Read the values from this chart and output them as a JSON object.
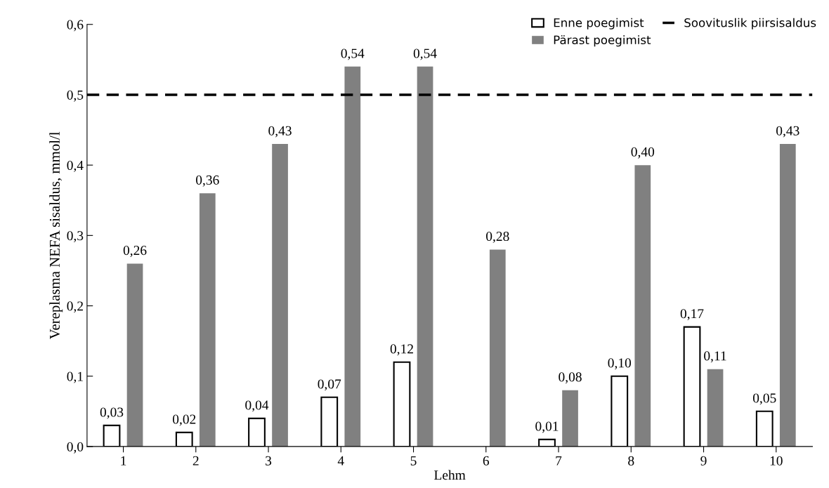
{
  "chart_data": {
    "type": "bar",
    "xlabel": "Lehm",
    "ylabel": "Vereplasma NEFA sisaldus, mmol/l",
    "categories": [
      "1",
      "2",
      "3",
      "4",
      "5",
      "6",
      "7",
      "8",
      "9",
      "10"
    ],
    "series": [
      {
        "name": "Enne poegimist",
        "color": "#ffffff",
        "values": [
          0.03,
          0.02,
          0.04,
          0.07,
          0.12,
          null,
          0.01,
          0.1,
          0.17,
          0.05
        ],
        "value_labels": [
          "0,03",
          "0,02",
          "0,04",
          "0,07",
          "0,12",
          null,
          "0,01",
          "0,10",
          "0,17",
          "0,05"
        ]
      },
      {
        "name": "Pärast poegimist",
        "color": "#808080",
        "values": [
          0.26,
          0.36,
          0.43,
          0.54,
          0.54,
          0.28,
          0.08,
          0.4,
          0.11,
          0.43
        ],
        "value_labels": [
          "0,26",
          "0,36",
          "0,43",
          "0,54",
          "0,54",
          "0,28",
          "0,08",
          "0,40",
          "0,11",
          "0,43"
        ]
      }
    ],
    "ylim": [
      0,
      0.6
    ],
    "yticks": [
      {
        "value": 0,
        "label": "0,0"
      },
      {
        "value": 0.1,
        "label": "0,1"
      },
      {
        "value": 0.2,
        "label": "0,2"
      },
      {
        "value": 0.3,
        "label": "0,3"
      },
      {
        "value": 0.4,
        "label": "0,4"
      },
      {
        "value": 0.5,
        "label": "0,5"
      },
      {
        "value": 0.6,
        "label": "0,6"
      }
    ],
    "ref_lines": [
      {
        "axis": "y",
        "value": 0.5,
        "label": "Soovituslik piirsisaldus",
        "color": "#000000",
        "line_style": "dashed"
      }
    ],
    "legend": "top right",
    "grid": false
  }
}
